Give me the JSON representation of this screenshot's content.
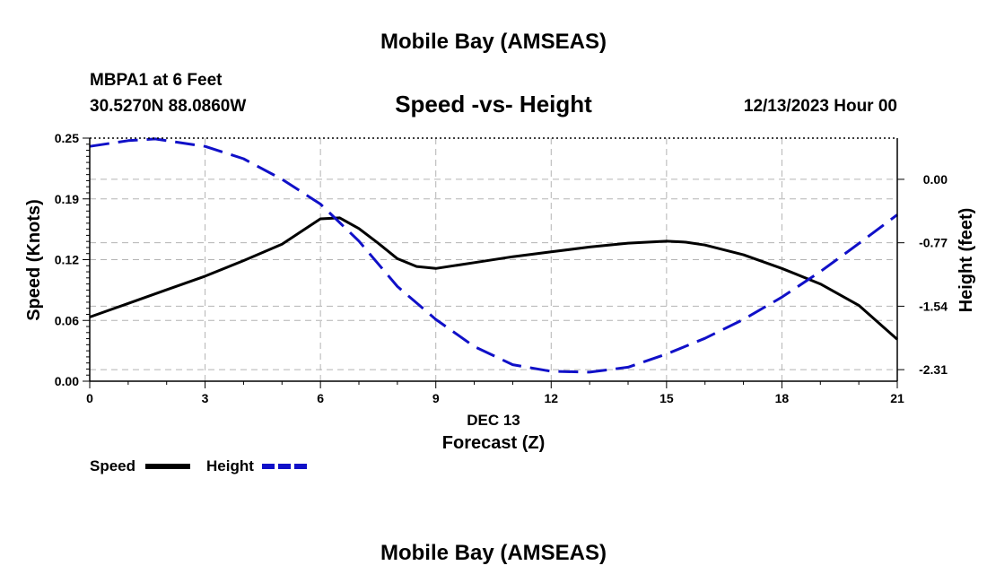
{
  "chart_data": {
    "type": "line",
    "title": "Mobile Bay (AMSEAS)",
    "footer_title": "Mobile Bay (AMSEAS)",
    "station": "MBPA1 at 6 Feet",
    "coords": "30.5270N  88.0860W",
    "subtitle": "Speed -vs- Height",
    "datetime": "12/13/2023 Hour 00",
    "xlabel": "Forecast (Z)",
    "x_date_label": "DEC 13",
    "ylabel_left": "Speed (Knots)",
    "ylabel_right": "Height (feet)",
    "xlim": [
      0,
      21
    ],
    "x_ticks": [
      0,
      3,
      6,
      9,
      12,
      15,
      18,
      21
    ],
    "ylim_left": [
      0.0,
      0.25
    ],
    "y_ticks_left": [
      "0.00",
      "0.06",
      "0.12",
      "0.19",
      "0.25"
    ],
    "y_tick_values_left": [
      0.0,
      0.0625,
      0.125,
      0.1875,
      0.25
    ],
    "ylim_right": [
      -2.45,
      0.5
    ],
    "y_ticks_right": [
      "0.00",
      "-0.77",
      "-1.54",
      "-2.31"
    ],
    "y_tick_values_right": [
      0.0,
      -0.77,
      -1.54,
      -2.31
    ],
    "grid": true,
    "legend": [
      {
        "label": "Speed",
        "color": "#000000",
        "style": "solid"
      },
      {
        "label": "Height",
        "color": "#1010c8",
        "style": "dashed"
      }
    ],
    "series": [
      {
        "name": "Speed",
        "axis": "left",
        "color": "#000000",
        "x": [
          0,
          1,
          2,
          3,
          4,
          5,
          6,
          6.5,
          7,
          7.5,
          8,
          8.5,
          9,
          10,
          11,
          12,
          13,
          14,
          15,
          15.5,
          16,
          17,
          18,
          19,
          20,
          21
        ],
        "values": [
          0.066,
          0.08,
          0.094,
          0.108,
          0.124,
          0.141,
          0.167,
          0.168,
          0.157,
          0.142,
          0.126,
          0.118,
          0.116,
          0.122,
          0.128,
          0.133,
          0.138,
          0.142,
          0.144,
          0.143,
          0.14,
          0.13,
          0.116,
          0.1,
          0.078,
          0.043
        ]
      },
      {
        "name": "Height",
        "axis": "right",
        "color": "#1010c8",
        "x": [
          0,
          1,
          1.7,
          3,
          4,
          5,
          6,
          7,
          8,
          9,
          10,
          11,
          12,
          13,
          14,
          15,
          16,
          17,
          18,
          19,
          20,
          21
        ],
        "values": [
          0.4,
          0.47,
          0.49,
          0.4,
          0.25,
          0.0,
          -0.3,
          -0.75,
          -1.3,
          -1.7,
          -2.03,
          -2.25,
          -2.33,
          -2.34,
          -2.28,
          -2.12,
          -1.93,
          -1.7,
          -1.43,
          -1.12,
          -0.78,
          -0.43
        ]
      }
    ]
  }
}
